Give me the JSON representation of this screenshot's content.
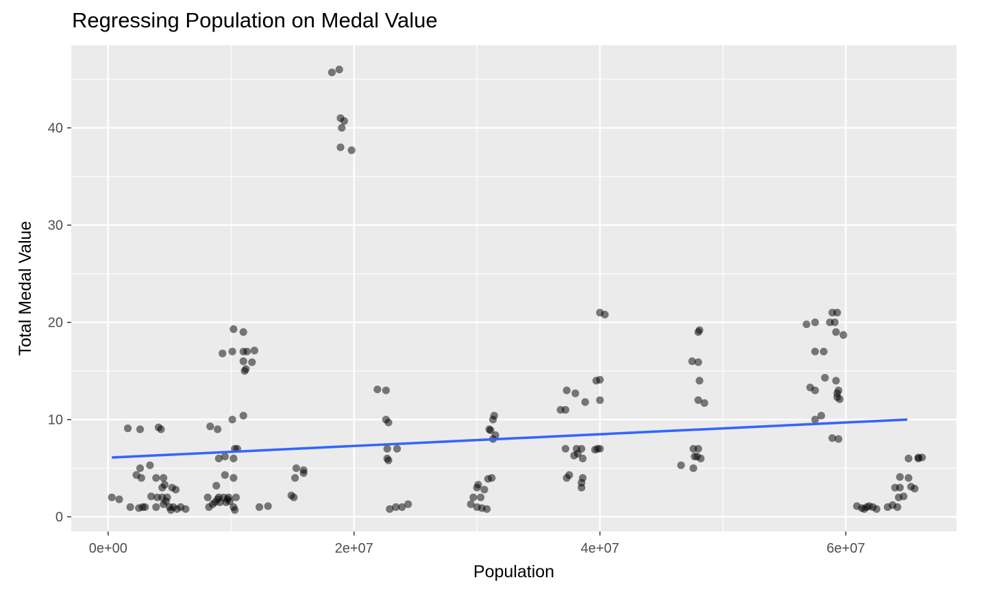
{
  "chart_data": {
    "type": "scatter",
    "title": "Regressing Population on Medal Value",
    "xlabel": "Population",
    "ylabel": "Total Medal Value",
    "xlim": [
      -3000000,
      69000000
    ],
    "ylim": [
      -1.5,
      48.5
    ],
    "x_ticks": [
      0,
      20000000,
      40000000,
      60000000
    ],
    "x_tick_labels": [
      "0e+00",
      "2e+07",
      "4e+07",
      "6e+07"
    ],
    "y_ticks": [
      0,
      10,
      20,
      30,
      40
    ],
    "y_tick_labels": [
      "0",
      "10",
      "20",
      "30",
      "40"
    ],
    "grid": true,
    "panel_background": "#ebebeb",
    "grid_color": "#ffffff",
    "point_color": "#000000",
    "point_alpha": 0.5,
    "line_color": "#3366ff",
    "regression_line": {
      "x": [
        300000,
        65000000
      ],
      "y": [
        6.1,
        10.0
      ]
    },
    "series": [
      {
        "points": [
          [
            300000,
            2.0
          ],
          [
            900000,
            1.8
          ],
          [
            1600000,
            9.1
          ],
          [
            1800000,
            1.0
          ],
          [
            2300000,
            4.3
          ],
          [
            2500000,
            0.9
          ],
          [
            2600000,
            5.0
          ],
          [
            2600000,
            9.0
          ],
          [
            2700000,
            4.0
          ],
          [
            2800000,
            1.0
          ],
          [
            3000000,
            1.0
          ],
          [
            3400000,
            5.3
          ],
          [
            3500000,
            2.1
          ],
          [
            3900000,
            4.0
          ],
          [
            3900000,
            1.0
          ],
          [
            4000000,
            2.0
          ],
          [
            4100000,
            9.2
          ],
          [
            4300000,
            9.0
          ],
          [
            4400000,
            3.0
          ],
          [
            4400000,
            2.0
          ],
          [
            4500000,
            4.0
          ],
          [
            4500000,
            1.3
          ],
          [
            4600000,
            3.3
          ],
          [
            4700000,
            1.6
          ],
          [
            4800000,
            2.0
          ],
          [
            5000000,
            1.0
          ],
          [
            5100000,
            0.7
          ],
          [
            5200000,
            3.0
          ],
          [
            5300000,
            1.0
          ],
          [
            5500000,
            2.8
          ],
          [
            5600000,
            0.8
          ],
          [
            5900000,
            1.0
          ],
          [
            6300000,
            0.8
          ],
          [
            8100000,
            2.0
          ],
          [
            8200000,
            1.0
          ],
          [
            8300000,
            9.3
          ],
          [
            8500000,
            1.3
          ],
          [
            8700000,
            1.5
          ],
          [
            8800000,
            3.2
          ],
          [
            8900000,
            9.0
          ],
          [
            8900000,
            1.8
          ],
          [
            9000000,
            6.0
          ],
          [
            9000000,
            2.0
          ],
          [
            9100000,
            1.5
          ],
          [
            9300000,
            16.8
          ],
          [
            9400000,
            2.0
          ],
          [
            9500000,
            6.2
          ],
          [
            9500000,
            4.3
          ],
          [
            9600000,
            1.5
          ],
          [
            9700000,
            1.8
          ],
          [
            9800000,
            2.0
          ],
          [
            9900000,
            1.6
          ],
          [
            10100000,
            10.0
          ],
          [
            10100000,
            17.0
          ],
          [
            10200000,
            19.3
          ],
          [
            10200000,
            6.0
          ],
          [
            10200000,
            4.0
          ],
          [
            10200000,
            1.0
          ],
          [
            10300000,
            7.0
          ],
          [
            10300000,
            0.7
          ],
          [
            10400000,
            2.0
          ],
          [
            10500000,
            7.0
          ],
          [
            11000000,
            10.4
          ],
          [
            11000000,
            17.0
          ],
          [
            11000000,
            19.0
          ],
          [
            11000000,
            16.0
          ],
          [
            11100000,
            15.0
          ],
          [
            11200000,
            15.2
          ],
          [
            11300000,
            17.0
          ],
          [
            11700000,
            15.9
          ],
          [
            11900000,
            17.1
          ],
          [
            12300000,
            1.0
          ],
          [
            13000000,
            1.1
          ],
          [
            14900000,
            2.2
          ],
          [
            15100000,
            2.0
          ],
          [
            15200000,
            4.0
          ],
          [
            15300000,
            5.0
          ],
          [
            15900000,
            4.5
          ],
          [
            15900000,
            4.8
          ],
          [
            18200000,
            45.7
          ],
          [
            18800000,
            46.0
          ],
          [
            18900000,
            41.0
          ],
          [
            18900000,
            38.0
          ],
          [
            19000000,
            40.0
          ],
          [
            19200000,
            40.7
          ],
          [
            19800000,
            37.7
          ],
          [
            21900000,
            13.1
          ],
          [
            22600000,
            13.0
          ],
          [
            22600000,
            10.0
          ],
          [
            22700000,
            7.0
          ],
          [
            22700000,
            6.0
          ],
          [
            22800000,
            9.7
          ],
          [
            22800000,
            5.8
          ],
          [
            22900000,
            0.8
          ],
          [
            23400000,
            1.0
          ],
          [
            23500000,
            7.0
          ],
          [
            23900000,
            1.0
          ],
          [
            24400000,
            1.3
          ],
          [
            29500000,
            1.3
          ],
          [
            29700000,
            2.0
          ],
          [
            30000000,
            1.0
          ],
          [
            30000000,
            3.0
          ],
          [
            30100000,
            3.3
          ],
          [
            30300000,
            2.0
          ],
          [
            30400000,
            0.9
          ],
          [
            30600000,
            2.8
          ],
          [
            30800000,
            0.8
          ],
          [
            30900000,
            3.9
          ],
          [
            31000000,
            9.0
          ],
          [
            31100000,
            8.9
          ],
          [
            31200000,
            4.0
          ],
          [
            31300000,
            10.0
          ],
          [
            31300000,
            8.0
          ],
          [
            31400000,
            10.4
          ],
          [
            31500000,
            8.4
          ],
          [
            36800000,
            11.0
          ],
          [
            37200000,
            11.0
          ],
          [
            37200000,
            7.0
          ],
          [
            37300000,
            13.0
          ],
          [
            37300000,
            4.0
          ],
          [
            37500000,
            4.3
          ],
          [
            37900000,
            6.3
          ],
          [
            38000000,
            12.7
          ],
          [
            38100000,
            7.0
          ],
          [
            38200000,
            6.5
          ],
          [
            38500000,
            7.0
          ],
          [
            38500000,
            3.5
          ],
          [
            38500000,
            3.0
          ],
          [
            38600000,
            4.0
          ],
          [
            38600000,
            6.0
          ],
          [
            38800000,
            11.8
          ],
          [
            39600000,
            6.9
          ],
          [
            39700000,
            14.0
          ],
          [
            39800000,
            7.0
          ],
          [
            40000000,
            12.0
          ],
          [
            40000000,
            21.0
          ],
          [
            40000000,
            7.0
          ],
          [
            40000000,
            14.1
          ],
          [
            40400000,
            20.8
          ],
          [
            46600000,
            5.3
          ],
          [
            47500000,
            16.0
          ],
          [
            47600000,
            7.0
          ],
          [
            47600000,
            5.0
          ],
          [
            47700000,
            6.2
          ],
          [
            47900000,
            6.2
          ],
          [
            48000000,
            15.9
          ],
          [
            48000000,
            19.0
          ],
          [
            48000000,
            12.0
          ],
          [
            48000000,
            7.0
          ],
          [
            48100000,
            14.0
          ],
          [
            48100000,
            19.2
          ],
          [
            48200000,
            6.0
          ],
          [
            48500000,
            11.7
          ],
          [
            56800000,
            19.8
          ],
          [
            57100000,
            13.3
          ],
          [
            57500000,
            20.0
          ],
          [
            57500000,
            17.0
          ],
          [
            57500000,
            13.0
          ],
          [
            57500000,
            10.0
          ],
          [
            58000000,
            10.4
          ],
          [
            58200000,
            17.0
          ],
          [
            58300000,
            14.3
          ],
          [
            58700000,
            20.0
          ],
          [
            58900000,
            21.0
          ],
          [
            58900000,
            8.1
          ],
          [
            59100000,
            20.0
          ],
          [
            59200000,
            19.0
          ],
          [
            59200000,
            14.0
          ],
          [
            59300000,
            21.0
          ],
          [
            59300000,
            12.7
          ],
          [
            59300000,
            12.3
          ],
          [
            59400000,
            8.0
          ],
          [
            59400000,
            13.0
          ],
          [
            59500000,
            12.1
          ],
          [
            59800000,
            18.7
          ],
          [
            60900000,
            1.1
          ],
          [
            61300000,
            0.9
          ],
          [
            61500000,
            0.8
          ],
          [
            61700000,
            1.0
          ],
          [
            61900000,
            1.1
          ],
          [
            62200000,
            1.0
          ],
          [
            62500000,
            0.8
          ],
          [
            63400000,
            1.0
          ],
          [
            63800000,
            1.2
          ],
          [
            64000000,
            3.0
          ],
          [
            64200000,
            1.0
          ],
          [
            64300000,
            2.0
          ],
          [
            64400000,
            3.0
          ],
          [
            64400000,
            4.1
          ],
          [
            64700000,
            2.1
          ],
          [
            65100000,
            4.0
          ],
          [
            65100000,
            6.0
          ],
          [
            65300000,
            3.1
          ],
          [
            65600000,
            2.9
          ],
          [
            65900000,
            6.0
          ],
          [
            65900000,
            6.1
          ],
          [
            66200000,
            6.1
          ]
        ]
      }
    ]
  }
}
